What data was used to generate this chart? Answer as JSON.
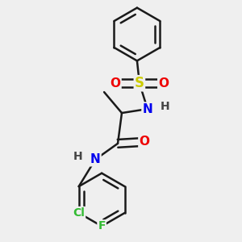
{
  "bg_color": "#efefef",
  "bond_color": "#1a1a1a",
  "bond_width": 1.8,
  "dbo": 0.055,
  "atom_colors": {
    "N": "#0000ee",
    "O": "#ee0000",
    "S": "#cccc00",
    "Cl": "#33bb33",
    "F": "#33bb33",
    "C": "#1a1a1a",
    "H": "#444444"
  },
  "font_size": 11,
  "fig_size": [
    3.0,
    3.0
  ],
  "dpi": 100,
  "xlim": [
    -0.5,
    1.5
  ],
  "ylim": [
    -0.3,
    2.7
  ]
}
